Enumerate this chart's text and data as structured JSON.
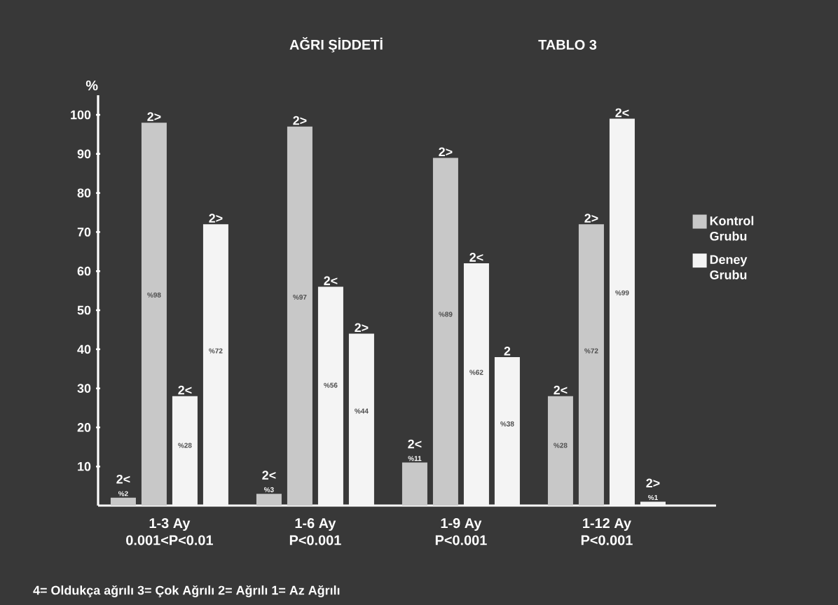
{
  "chart_data": {
    "type": "bar",
    "title": "AĞRI ŞİDDETİ",
    "subtitle": "TABLO 3",
    "ylabel": "%",
    "categories": [
      "1-3 Ay",
      "1-6 Ay",
      "1-9 Ay",
      "1-12 Ay"
    ],
    "series": [
      {
        "name": "Kontrol Grubu",
        "color": "#c8c8c8",
        "values": [
          2,
          3,
          11,
          28
        ],
        "value_labels": [
          "%2",
          "%3",
          "%11",
          "%28"
        ]
      },
      {
        "color": "#c8c8c8",
        "values": [
          98,
          97,
          89,
          72
        ],
        "value_labels": [
          "%98",
          "%97",
          "%89",
          "%72"
        ]
      },
      {
        "name": "Deney Grubu",
        "color": "#f4f4f4",
        "values": [
          28,
          56,
          62,
          99
        ],
        "value_labels": [
          "%28",
          "%56",
          "%62",
          "%99"
        ]
      },
      {
        "color": "#f4f4f4",
        "values": [
          72,
          44,
          38,
          1
        ],
        "value_labels": [
          "%72",
          "%44",
          "%38",
          "%1"
        ]
      }
    ],
    "ylim": [
      0,
      105
    ],
    "yticks": [
      10,
      20,
      30,
      40,
      50,
      60,
      70,
      80,
      90,
      100
    ],
    "legend": "right",
    "annotations": [
      "2<",
      "2>",
      "2<",
      "2>",
      "2<",
      "2>",
      "2<",
      "2>",
      "2<",
      "2>",
      "2<",
      "2",
      "2<",
      "2>",
      "2<",
      "2>",
      "0.001<P<0.01",
      "P<0.001",
      "P<0.001",
      "P<0.001",
      "4= Oldukça ağrılı   3= Çok Ağrılı   2= Ağrılı   1= Az Ağrılı"
    ]
  }
}
